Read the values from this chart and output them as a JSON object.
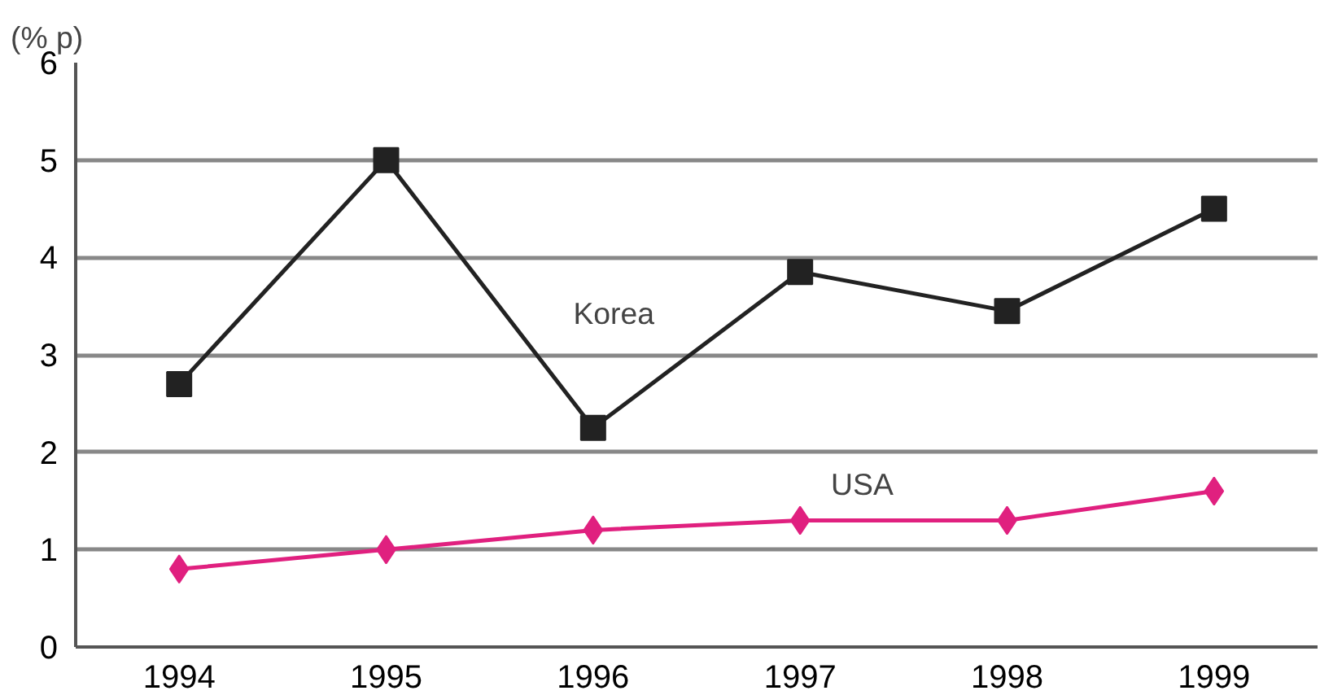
{
  "chart_data": {
    "type": "line",
    "ylabel": "(% p)",
    "categories": [
      "1994",
      "1995",
      "1996",
      "1997",
      "1998",
      "1999"
    ],
    "series": [
      {
        "name": "Korea",
        "color": "#222222",
        "marker": "square",
        "values": [
          2.7,
          5.0,
          2.25,
          3.85,
          3.45,
          4.5
        ]
      },
      {
        "name": "USA",
        "color": "#e0207f",
        "marker": "diamond",
        "values": [
          0.8,
          1.0,
          1.2,
          1.3,
          1.3,
          1.6
        ]
      }
    ],
    "ylim": [
      0,
      6
    ],
    "yticks": [
      0,
      1,
      2,
      3,
      4,
      5,
      6
    ],
    "grid": "y"
  }
}
